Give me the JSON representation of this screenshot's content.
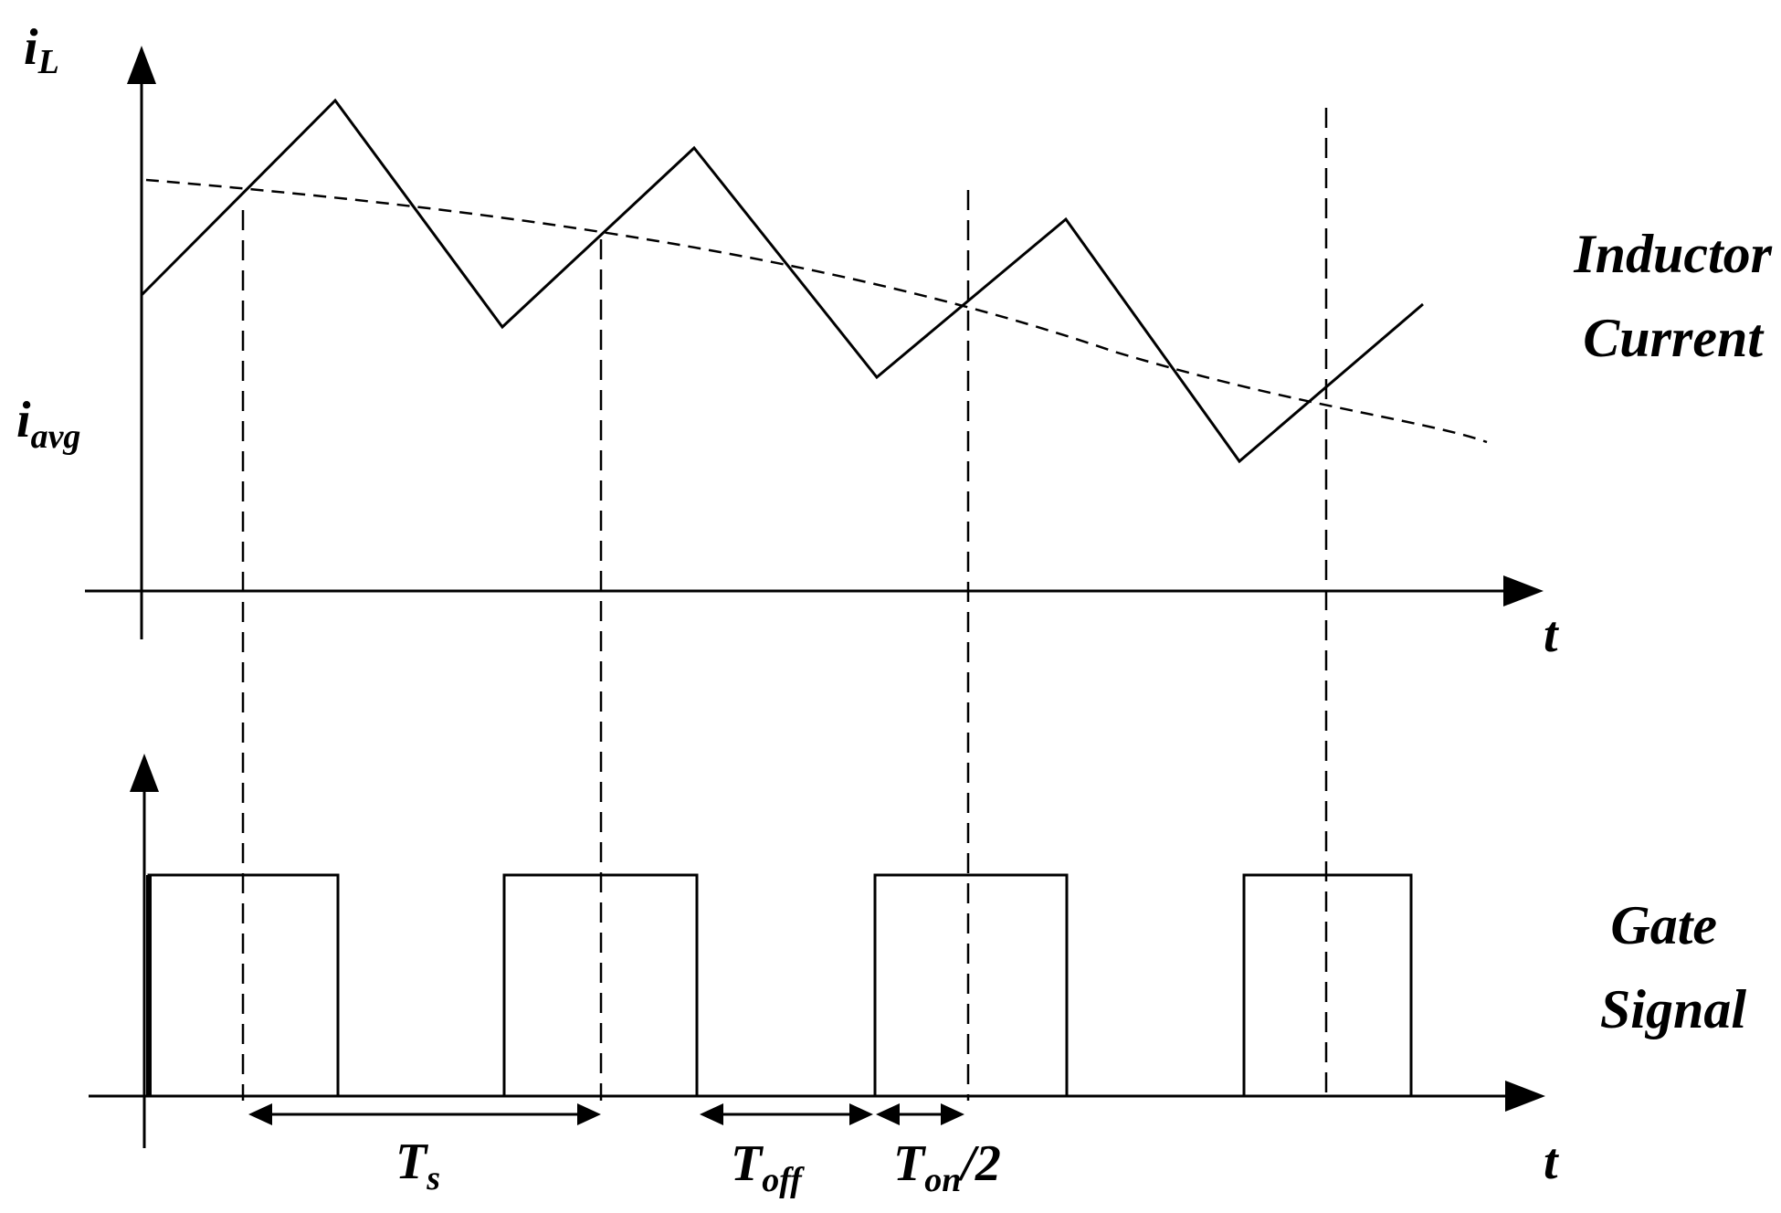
{
  "labels": {
    "y_top": "i",
    "y_top_sub": "L",
    "avg": "i",
    "avg_sub": "avg",
    "x_top": "t",
    "x_bottom": "t",
    "inductor_line1": "Inductor",
    "inductor_line2": "Current",
    "gate_line1": "Gate",
    "gate_line2": "Signal",
    "ts": "T",
    "ts_sub": "s",
    "toff": "T",
    "toff_sub": "off",
    "ton": "T",
    "ton_sub": "on",
    "ton_suffix": "/2"
  }
}
